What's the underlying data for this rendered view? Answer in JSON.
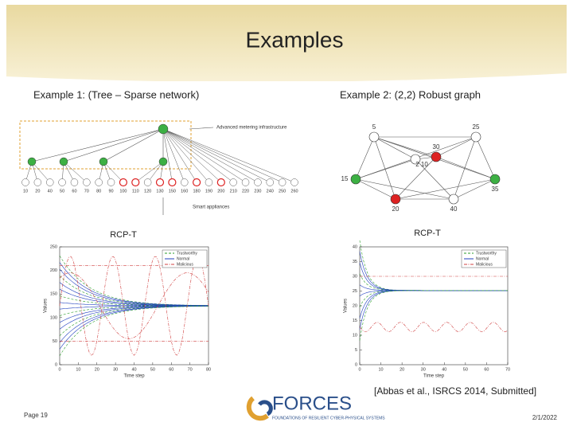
{
  "slide": {
    "title": "Examples",
    "example1": {
      "heading": "Example 1: (Tree – Sparse network)",
      "annotations": [
        "Advanced metering infrastructure",
        "Smart appliances"
      ],
      "leaves": [
        "10",
        "20",
        "40",
        "50",
        "60",
        "70",
        "80",
        "90",
        "100",
        "110",
        "120",
        "130",
        "150",
        "160",
        "180",
        "190",
        "200",
        "210",
        "220",
        "230",
        "240",
        "250",
        "260"
      ]
    },
    "example2": {
      "heading": "Example 2: (2,2) Robust graph",
      "nodes": [
        "5",
        "25",
        "30",
        "2 10",
        "15",
        "35",
        "20",
        "40"
      ]
    },
    "plots": [
      {
        "caption": "RCP-T",
        "xlabel": "Time step",
        "ylabel": "Values",
        "xlim": [
          0,
          80
        ],
        "xticks": [
          0,
          10,
          20,
          30,
          40,
          50,
          60,
          70,
          80
        ],
        "ylim": [
          0,
          250
        ],
        "yticks": [
          0,
          50,
          100,
          150,
          200,
          250
        ],
        "legend": [
          "Trustworthy",
          "Normal",
          "Malicious"
        ]
      },
      {
        "caption": "RCP-T",
        "xlabel": "Time step",
        "ylabel": "Values",
        "xlim": [
          0,
          70
        ],
        "xticks": [
          0,
          10,
          20,
          30,
          40,
          50,
          60,
          70
        ],
        "ylim": [
          0,
          40
        ],
        "yticks": [
          0,
          5,
          10,
          15,
          20,
          25,
          30,
          35,
          40
        ],
        "legend": [
          "Trustworthy",
          "Normal",
          "Malicious"
        ]
      }
    ],
    "citation": "[Abbas et al., ISRCS 2014, Submitted]",
    "logo": {
      "name": "FORCES",
      "tagline": "FOUNDATIONS OF RESILIENT CYBER-PHYSICAL SYSTEMS"
    },
    "footer": {
      "page": "Page 19",
      "date": "2/1/2022"
    }
  }
}
